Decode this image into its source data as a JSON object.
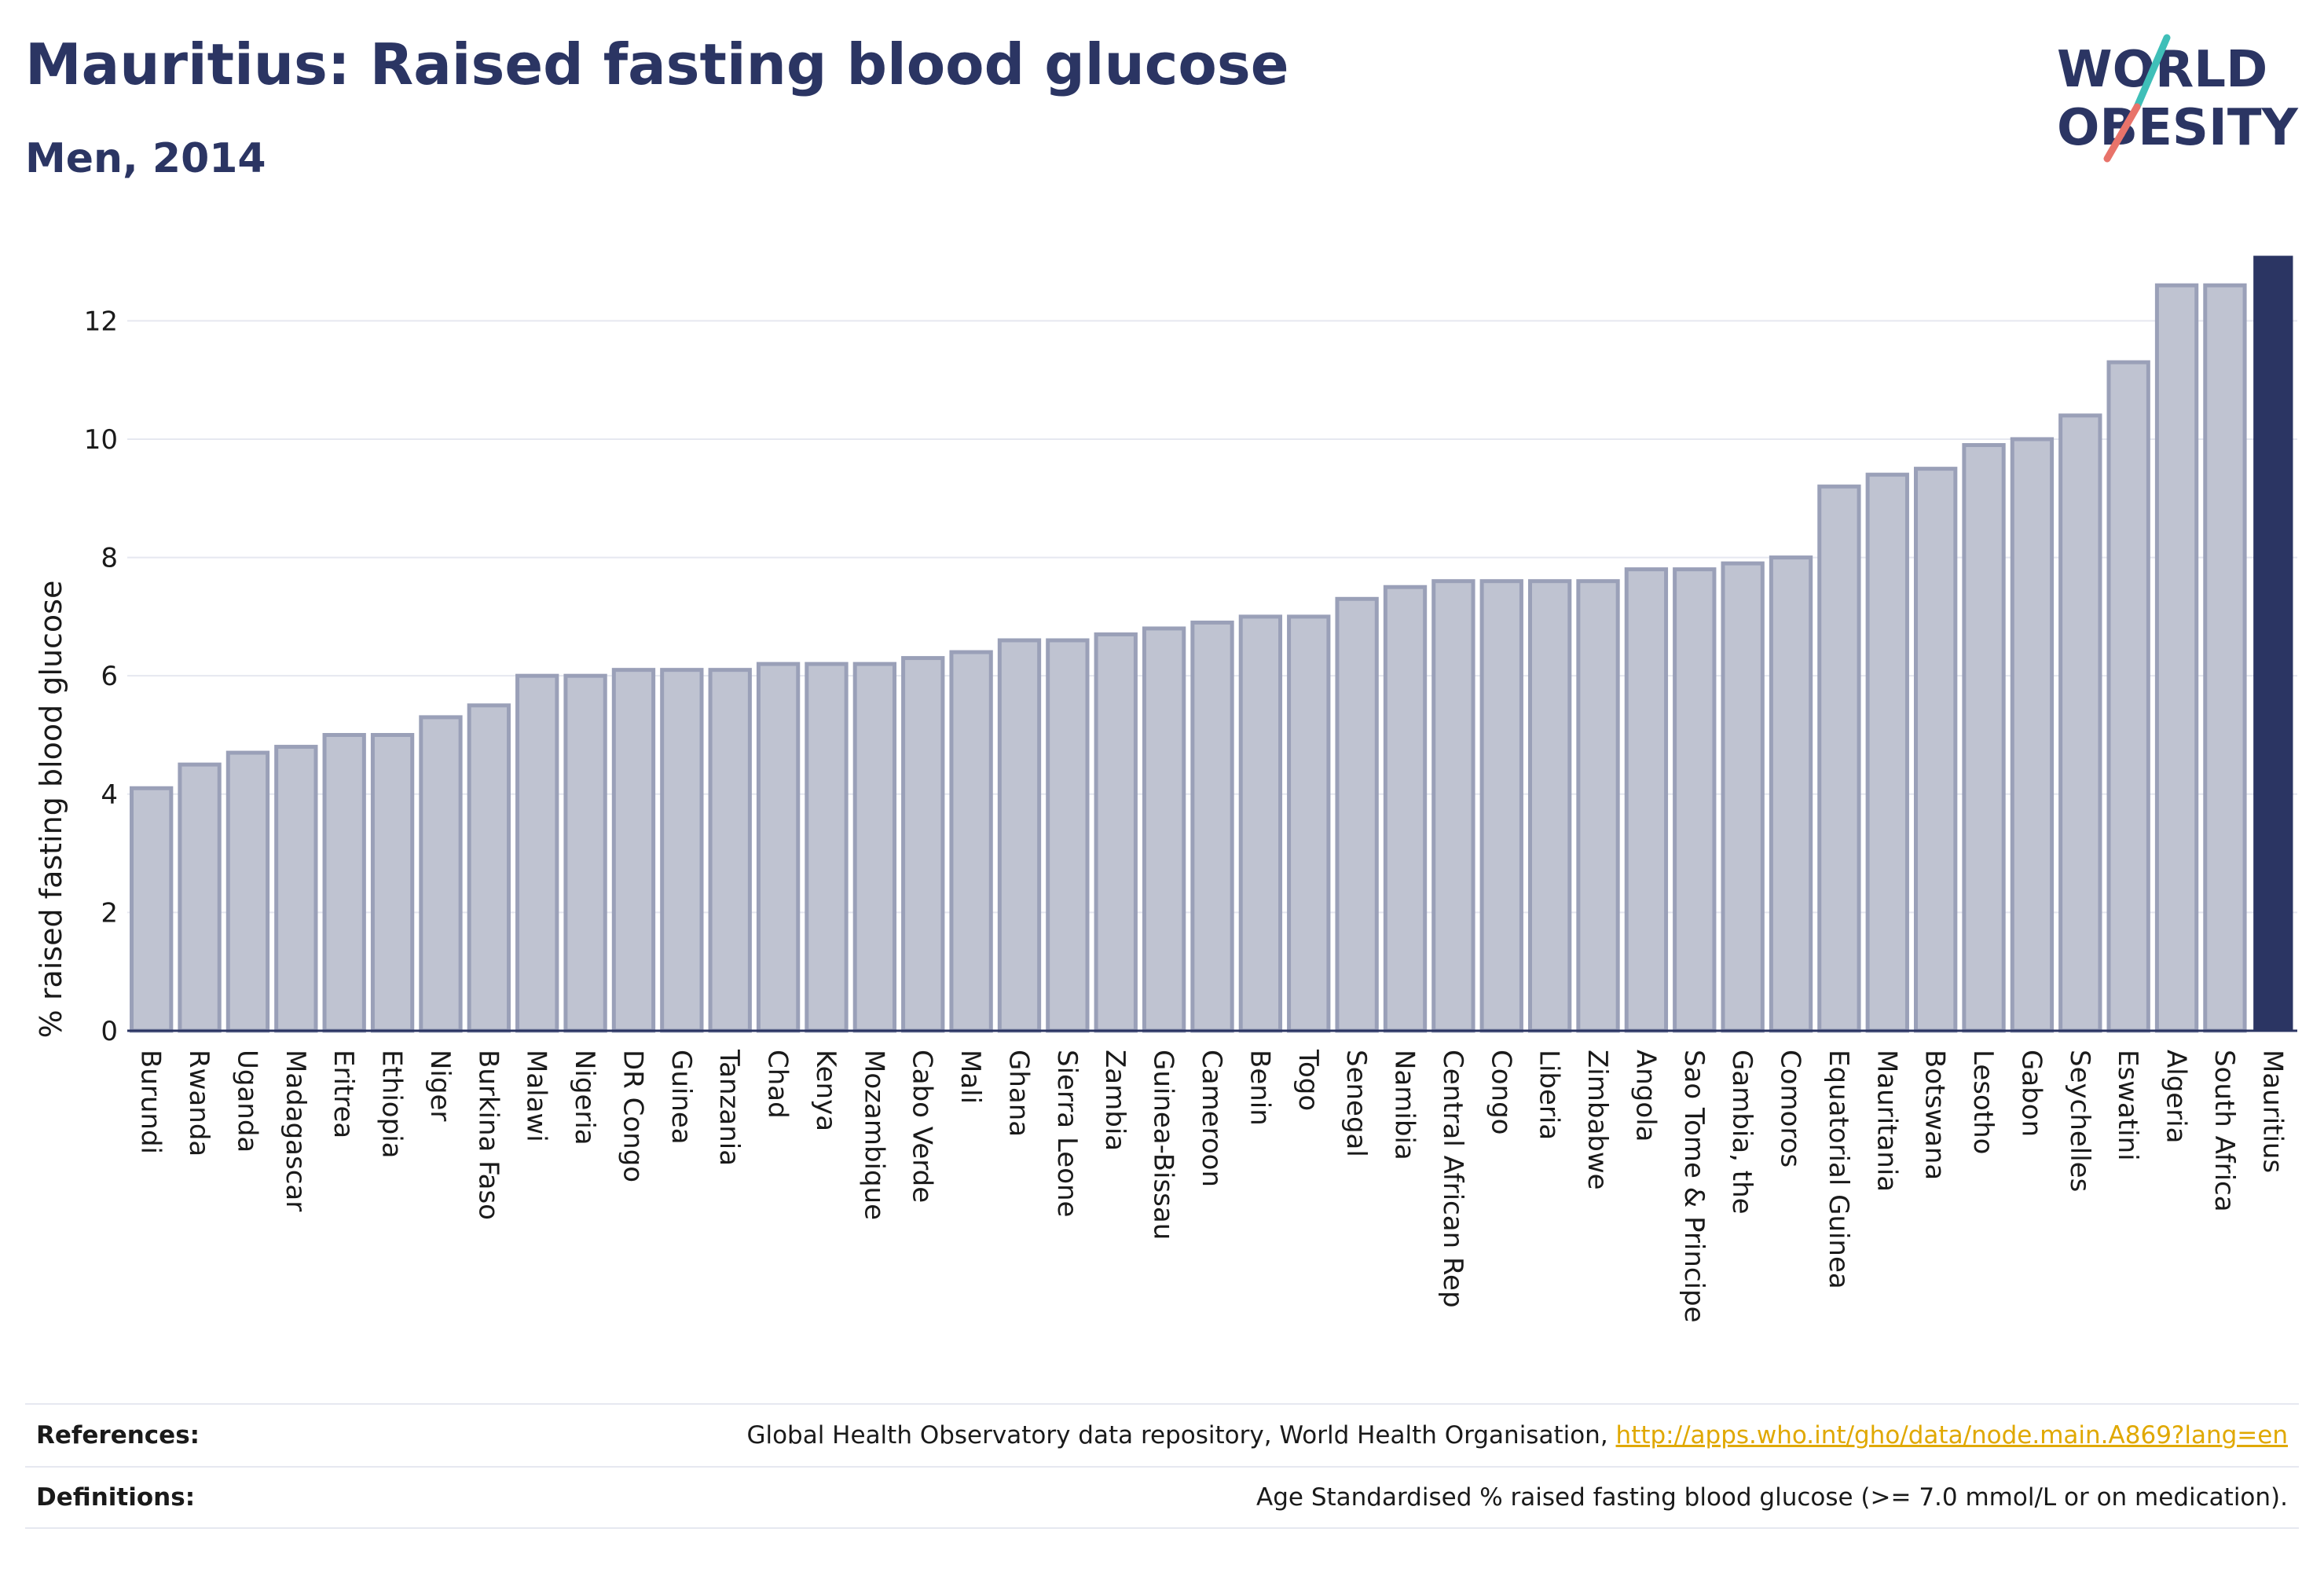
{
  "header": {
    "title": "Mauritius: Raised fasting blood glucose",
    "subtitle": "Men, 2014"
  },
  "logo": {
    "line1": "WORLD",
    "line2": "OBESITY",
    "colors": {
      "text": "#2b3563",
      "slash_teal": "#3fbfb8",
      "slash_coral": "#e8736a"
    }
  },
  "chart_data": {
    "type": "bar",
    "ylabel": "% raised fasting blood glucose",
    "xlabel": "",
    "ylim": [
      0,
      13.2
    ],
    "yticks": [
      0,
      2,
      4,
      6,
      8,
      10,
      12
    ],
    "grid": true,
    "highlight": "Mauritius",
    "colors": {
      "bar_fill": "#bfc3d1",
      "bar_edge": "#9aa0b8",
      "highlight": "#2b3563",
      "grid": "#e6e8f0"
    },
    "categories": [
      "Burundi",
      "Rwanda",
      "Uganda",
      "Madagascar",
      "Eritrea",
      "Ethiopia",
      "Niger",
      "Burkina Faso",
      "Malawi",
      "Nigeria",
      "DR Congo",
      "Guinea",
      "Tanzania",
      "Chad",
      "Kenya",
      "Mozambique",
      "Cabo Verde",
      "Mali",
      "Ghana",
      "Sierra Leone",
      "Zambia",
      "Guinea-Bissau",
      "Cameroon",
      "Benin",
      "Togo",
      "Senegal",
      "Namibia",
      "Central African Rep",
      "Congo",
      "Liberia",
      "Zimbabwe",
      "Angola",
      "Sao Tome & Principe",
      "Gambia, the",
      "Comoros",
      "Equatorial Guinea",
      "Mauritania",
      "Botswana",
      "Lesotho",
      "Gabon",
      "Seychelles",
      "Eswatini",
      "Algeria",
      "South Africa",
      "Mauritius"
    ],
    "values": [
      4.1,
      4.5,
      4.7,
      4.8,
      5.0,
      5.0,
      5.3,
      5.5,
      6.0,
      6.0,
      6.1,
      6.1,
      6.1,
      6.2,
      6.2,
      6.2,
      6.3,
      6.4,
      6.6,
      6.6,
      6.7,
      6.8,
      6.9,
      7.0,
      7.0,
      7.3,
      7.5,
      7.6,
      7.6,
      7.6,
      7.6,
      7.8,
      7.8,
      7.9,
      8.0,
      9.2,
      9.4,
      9.5,
      9.9,
      10.0,
      10.4,
      11.3,
      12.6,
      12.6,
      13.1
    ]
  },
  "footer": {
    "references_label": "References:",
    "references_text": "Global Health Observatory data repository, World Health Organisation, ",
    "references_link": "http://apps.who.int/gho/data/node.main.A869?lang=en",
    "definitions_label": "Definitions:",
    "definitions_text": "Age Standardised % raised fasting blood glucose (>= 7.0 mmol/L or on medication)."
  }
}
